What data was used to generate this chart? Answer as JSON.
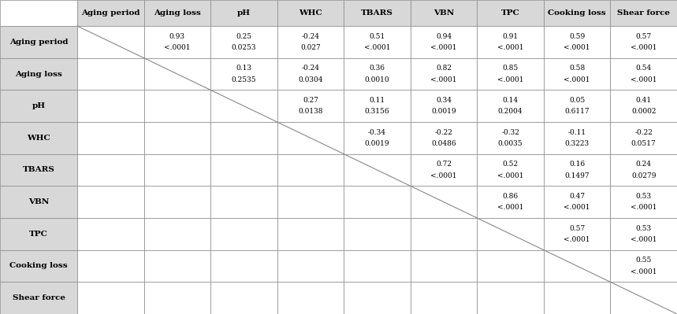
{
  "row_labels": [
    "Aging period",
    "Aging loss",
    "pH",
    "WHC",
    "TBARS",
    "VBN",
    "TPC",
    "Cooking loss",
    "Shear force"
  ],
  "col_labels": [
    "",
    "Aging period",
    "Aging loss",
    "pH",
    "WHC",
    "TBARS",
    "VBN",
    "TPC",
    "Cooking loss",
    "Shear force"
  ],
  "cells": {
    "0,1": [
      "0.93",
      "<.0001"
    ],
    "0,2": [
      "0.25",
      "0.0253"
    ],
    "0,3": [
      "-0.24",
      "0.027"
    ],
    "0,4": [
      "0.51",
      "<.0001"
    ],
    "0,5": [
      "0.94",
      "<.0001"
    ],
    "0,6": [
      "0.91",
      "<.0001"
    ],
    "0,7": [
      "0.59",
      "<.0001"
    ],
    "0,8": [
      "0.57",
      "<.0001"
    ],
    "1,2": [
      "0.13",
      "0.2535"
    ],
    "1,3": [
      "-0.24",
      "0.0304"
    ],
    "1,4": [
      "0.36",
      "0.0010"
    ],
    "1,5": [
      "0.82",
      "<.0001"
    ],
    "1,6": [
      "0.85",
      "<.0001"
    ],
    "1,7": [
      "0.58",
      "<.0001"
    ],
    "1,8": [
      "0.54",
      "<.0001"
    ],
    "2,3": [
      "0.27",
      "0.0138"
    ],
    "2,4": [
      "0.11",
      "0.3156"
    ],
    "2,5": [
      "0.34",
      "0.0019"
    ],
    "2,6": [
      "0.14",
      "0.2004"
    ],
    "2,7": [
      "0.05",
      "0.6117"
    ],
    "2,8": [
      "0.41",
      "0.0002"
    ],
    "3,4": [
      "-0.34",
      "0.0019"
    ],
    "3,5": [
      "-0.22",
      "0.0486"
    ],
    "3,6": [
      "-0.32",
      "0.0035"
    ],
    "3,7": [
      "-0.11",
      "0.3223"
    ],
    "3,8": [
      "-0.22",
      "0.0517"
    ],
    "4,5": [
      "0.72",
      "<.0001"
    ],
    "4,6": [
      "0.52",
      "<.0001"
    ],
    "4,7": [
      "0.16",
      "0.1497"
    ],
    "4,8": [
      "0.24",
      "0.0279"
    ],
    "5,6": [
      "0.86",
      "<.0001"
    ],
    "5,7": [
      "0.47",
      "<.0001"
    ],
    "5,8": [
      "0.53",
      "<.0001"
    ],
    "6,7": [
      "0.57",
      "<.0001"
    ],
    "6,8": [
      "0.53",
      "<.0001"
    ],
    "7,8": [
      "0.55",
      "<.0001"
    ]
  },
  "bg_color": "#ffffff",
  "header_bg": "#d8d8d8",
  "row_label_bg": "#d8d8d8",
  "cell_bg": "#ffffff",
  "grid_color": "#888888",
  "text_color": "#000000",
  "data_font_size": 6.5,
  "header_font_size": 7.5,
  "n_rows": 9,
  "n_cols": 10
}
